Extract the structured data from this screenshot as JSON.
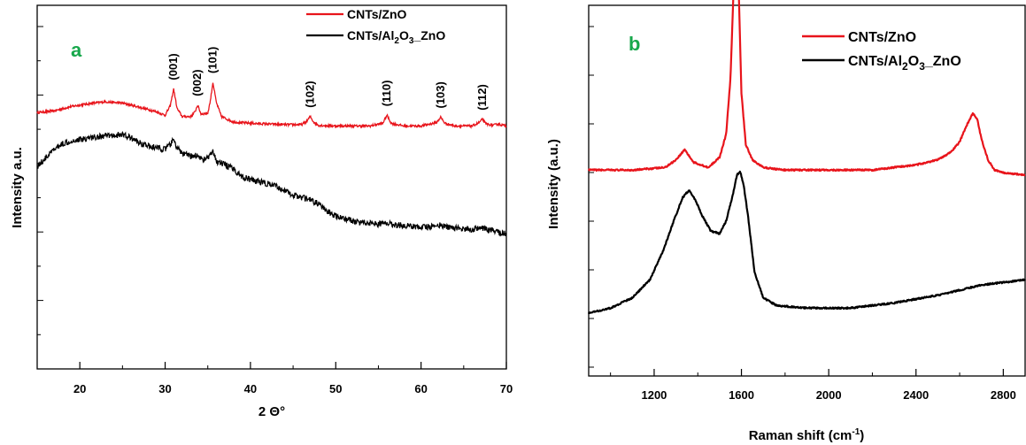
{
  "chart_data": [
    {
      "type": "line",
      "panel_label": "a",
      "xlabel": "2 Θ°",
      "ylabel": "Intensity  a.u.",
      "xlim": [
        15,
        70
      ],
      "xticks": [
        20,
        30,
        40,
        50,
        60,
        70
      ],
      "grid": false,
      "legend": {
        "placement": "top-right",
        "entries": [
          "CNTs/ZnO",
          "CNTs/Al2O3_ZnO"
        ]
      },
      "peak_labels": [
        {
          "label": "(001)",
          "x": 31.0
        },
        {
          "label": "(002)",
          "x": 33.8
        },
        {
          "label": "(101)",
          "x": 35.6
        },
        {
          "label": "(102)",
          "x": 47.0
        },
        {
          "label": "(110)",
          "x": 56.0
        },
        {
          "label": "(103)",
          "x": 62.3
        },
        {
          "label": "(112)",
          "x": 67.2
        }
      ],
      "series": [
        {
          "name": "CNTs/ZnO",
          "color": "#e8141b",
          "x": [
            15,
            17,
            19,
            21,
            23,
            25,
            27,
            29,
            30,
            30.6,
            31.0,
            31.4,
            32,
            33,
            33.5,
            33.8,
            34.2,
            35,
            35.3,
            35.6,
            36.0,
            36.6,
            38,
            40,
            42,
            44,
            46,
            46.6,
            47.0,
            47.4,
            48,
            50,
            52,
            54,
            55.5,
            56.0,
            56.5,
            58,
            60,
            61.8,
            62.3,
            62.8,
            64,
            66,
            66.8,
            67.2,
            67.6,
            68.5,
            69,
            70
          ],
          "y": [
            0.6,
            0.65,
            0.78,
            0.86,
            0.92,
            0.88,
            0.76,
            0.62,
            0.52,
            0.8,
            1.3,
            0.72,
            0.48,
            0.48,
            0.62,
            0.82,
            0.56,
            0.58,
            0.95,
            1.5,
            0.9,
            0.48,
            0.32,
            0.28,
            0.26,
            0.24,
            0.24,
            0.34,
            0.48,
            0.32,
            0.22,
            0.2,
            0.2,
            0.2,
            0.28,
            0.52,
            0.28,
            0.2,
            0.2,
            0.3,
            0.46,
            0.28,
            0.2,
            0.2,
            0.3,
            0.4,
            0.26,
            0.22,
            0.26,
            0.2
          ]
        },
        {
          "name": "CNTs/Al2O3_ZnO",
          "color": "#000000",
          "x": [
            15,
            16,
            17,
            18,
            19,
            20,
            21,
            22,
            23,
            24,
            25,
            26,
            27,
            28,
            29,
            30,
            30.6,
            31.0,
            31.4,
            32,
            33,
            33.8,
            34.5,
            35,
            35.6,
            36,
            37,
            38,
            39,
            40,
            41,
            42,
            43,
            44,
            45,
            46,
            47,
            48,
            49,
            50,
            51,
            52,
            53,
            54,
            55,
            56,
            57,
            58,
            59,
            60,
            61,
            62,
            63,
            64,
            65,
            66,
            67,
            68,
            69,
            70
          ],
          "y": [
            -1.0,
            -0.75,
            -0.5,
            -0.32,
            -0.24,
            -0.2,
            -0.16,
            -0.12,
            -0.1,
            -0.08,
            -0.06,
            -0.15,
            -0.3,
            -0.4,
            -0.45,
            -0.5,
            -0.35,
            -0.22,
            -0.45,
            -0.62,
            -0.7,
            -0.68,
            -0.8,
            -0.75,
            -0.58,
            -0.85,
            -0.95,
            -1.08,
            -1.3,
            -1.4,
            -1.45,
            -1.52,
            -1.6,
            -1.72,
            -1.85,
            -1.92,
            -2.0,
            -2.12,
            -2.35,
            -2.48,
            -2.55,
            -2.62,
            -2.66,
            -2.68,
            -2.72,
            -2.68,
            -2.74,
            -2.76,
            -2.78,
            -2.8,
            -2.8,
            -2.74,
            -2.8,
            -2.84,
            -2.86,
            -2.88,
            -2.84,
            -2.9,
            -2.95,
            -3.0
          ]
        }
      ]
    },
    {
      "type": "line",
      "panel_label": "b",
      "xlabel": "Raman shift (cm-1)",
      "ylabel": "Intensity (a.u.)",
      "xlim": [
        900,
        2900
      ],
      "xticks": [
        1200,
        1600,
        2000,
        2400,
        2800
      ],
      "grid": false,
      "legend": {
        "placement": "top-right",
        "entries": [
          "CNTs/ZnO",
          "CNTs/Al2O3_ZnO"
        ]
      },
      "series": [
        {
          "name": "CNTs/ZnO",
          "color": "#e8141b",
          "x": [
            900,
            1100,
            1250,
            1300,
            1340,
            1380,
            1450,
            1500,
            1530,
            1550,
            1565,
            1575,
            1585,
            1600,
            1620,
            1650,
            1700,
            1800,
            2000,
            2200,
            2400,
            2500,
            2560,
            2600,
            2630,
            2660,
            2680,
            2700,
            2730,
            2760,
            2800,
            2900
          ],
          "y": [
            0.02,
            0.02,
            0.03,
            0.06,
            0.1,
            0.05,
            0.03,
            0.07,
            0.16,
            0.38,
            0.75,
            1.1,
            0.8,
            0.32,
            0.12,
            0.06,
            0.03,
            0.02,
            0.02,
            0.02,
            0.04,
            0.06,
            0.09,
            0.13,
            0.19,
            0.24,
            0.22,
            0.14,
            0.06,
            0.02,
            0.01,
            0.0
          ]
        },
        {
          "name": "CNTs/Al2O3_ZnO",
          "color": "#000000",
          "x": [
            900,
            1000,
            1100,
            1180,
            1240,
            1290,
            1330,
            1360,
            1390,
            1420,
            1460,
            1500,
            1530,
            1560,
            1580,
            1595,
            1610,
            1630,
            1660,
            1700,
            1760,
            1900,
            2100,
            2300,
            2500,
            2700,
            2900
          ],
          "y": [
            0.0,
            0.02,
            0.06,
            0.13,
            0.24,
            0.36,
            0.45,
            0.48,
            0.44,
            0.38,
            0.32,
            0.31,
            0.36,
            0.46,
            0.54,
            0.55,
            0.5,
            0.38,
            0.16,
            0.06,
            0.03,
            0.02,
            0.02,
            0.04,
            0.07,
            0.11,
            0.13
          ]
        }
      ]
    }
  ]
}
